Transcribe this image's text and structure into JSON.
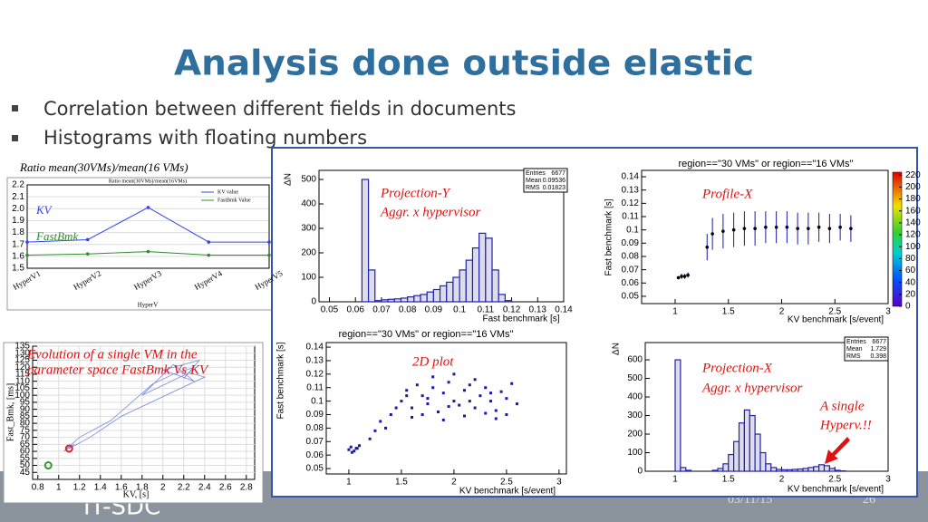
{
  "title": "Analysis done outside elastic",
  "bullets": [
    "Correlation between different fields in documents",
    "Histograms with floating numbers"
  ],
  "ratio_chart": {
    "type": "line",
    "caption": "Ratio mean(30VMs)/mean(16 VMs)",
    "title": "Ratio mean(30VMs)/mean(16VMs)",
    "categories": [
      "HyperV1",
      "HyperV2",
      "HyperV3",
      "HyperV4",
      "HyperV5"
    ],
    "series": [
      {
        "name": "KV value",
        "color": "#3344ee",
        "values": [
          1.72,
          1.74,
          2.01,
          1.72,
          1.72
        ]
      },
      {
        "name": "FastBmk Value",
        "color": "#2e8b2e",
        "values": [
          1.61,
          1.62,
          1.64,
          1.61,
          1.61
        ]
      }
    ],
    "annotations": [
      "KV",
      "FastBmk"
    ],
    "xlabel": "HyperV",
    "ylim": [
      1.5,
      2.2
    ],
    "yticks": [
      1.5,
      1.6,
      1.7,
      1.8,
      1.9,
      {
        "value": 2,
        "label": "2.0"
      },
      2.1,
      2.2
    ],
    "grid": true
  },
  "evolution_chart": {
    "type": "line",
    "annotation": [
      "Evolution of a single VM in the",
      "parameter space FastBmk Vs KV"
    ],
    "x": [
      1.1,
      1.15,
      1.05,
      1.2,
      1.5,
      1.9,
      2.1,
      2.3,
      2.2,
      2.35,
      2.0,
      2.3,
      2.1,
      1.8,
      2.25,
      2.4,
      1.6,
      1.3,
      1.1
    ],
    "values": [
      62,
      65,
      60,
      70,
      82,
      108,
      115,
      120,
      112,
      125,
      118,
      110,
      122,
      100,
      116,
      113,
      85,
      70,
      62
    ],
    "color": "#7788dd",
    "markers": [
      {
        "color": "#dd2222",
        "x": 1.1,
        "y": 62
      },
      {
        "color": "#339933",
        "x": 0.9,
        "y": 50
      }
    ],
    "xlabel": "KV, [s]",
    "ylabel": "Fast_Bmk, [ms]",
    "xlim": [
      0.75,
      2.88
    ],
    "ylim": [
      40,
      135
    ],
    "xticks": [
      0.8,
      1,
      1.2,
      1.4,
      1.6,
      1.8,
      2,
      2.2,
      2.4,
      2.6,
      2.8
    ],
    "yticks": [
      45,
      50,
      55,
      60,
      65,
      70,
      75,
      80,
      85,
      90,
      95,
      100,
      105,
      110,
      115,
      120,
      125,
      130,
      135
    ],
    "grid": true
  },
  "projection_y": {
    "type": "histogram",
    "annotation": [
      "Projection-Y",
      "Aggr. x hypervisor"
    ],
    "stats": {
      "labels": [
        "Entries",
        "Mean",
        "RMS"
      ],
      "values": [
        6677,
        0.09536,
        0.01823
      ]
    },
    "bins": [
      0.05,
      0.0525,
      0.055,
      0.0575,
      0.06,
      0.0625,
      0.065,
      0.0675,
      0.07,
      0.0725,
      0.075,
      0.0775,
      0.08,
      0.0825,
      0.085,
      0.0875,
      0.09,
      0.0925,
      0.095,
      0.0975,
      0.1,
      0.1025,
      0.105,
      0.1075,
      0.11,
      0.1125,
      0.115,
      0.1175,
      0.12,
      0.1225,
      0.125,
      0.1275,
      0.13,
      0.1325,
      0.135,
      0.1375,
      0.14
    ],
    "values": [
      0,
      0,
      0,
      0,
      0,
      500,
      130,
      5,
      8,
      10,
      12,
      15,
      20,
      25,
      30,
      40,
      50,
      65,
      80,
      100,
      130,
      170,
      220,
      280,
      260,
      130,
      30,
      5,
      0,
      0,
      0,
      0,
      0,
      0,
      0,
      0
    ],
    "color": "#2222aa",
    "xlabel": "Fast benchmark [s]",
    "ylabel": "ΔN",
    "xlim": [
      0.046,
      0.14
    ],
    "ylim": [
      0,
      537
    ],
    "xticks": [
      0.05,
      0.06,
      0.07,
      0.08,
      0.09,
      0.1,
      0.11,
      0.12,
      0.13,
      0.14
    ],
    "yticks": [
      0,
      100,
      200,
      300,
      400,
      500
    ]
  },
  "profile_x": {
    "type": "errorbar",
    "title": "region==\"30 VMs\" or region==\"16 VMs\"",
    "annotation": [
      "Profile-X"
    ],
    "x": [
      1.03,
      1.06,
      1.09,
      1.12,
      1.3,
      1.35,
      1.45,
      1.55,
      1.65,
      1.75,
      1.85,
      1.95,
      2.05,
      2.15,
      2.25,
      2.35,
      2.45,
      2.55,
      2.65
    ],
    "values": [
      0.064,
      0.065,
      0.065,
      0.066,
      0.087,
      0.097,
      0.099,
      0.1,
      0.101,
      0.101,
      0.102,
      0.102,
      0.102,
      0.101,
      0.101,
      0.102,
      0.101,
      0.102,
      0.101
    ],
    "errors": [
      0.001,
      0.002,
      0.002,
      0.002,
      0.01,
      0.012,
      0.013,
      0.013,
      0.013,
      0.013,
      0.012,
      0.012,
      0.012,
      0.012,
      0.012,
      0.011,
      0.011,
      0.01,
      0.01
    ],
    "color": "#1a1aaa",
    "xlabel": "KV benchmark [s/event]",
    "ylabel": "Fast benchmark [s]",
    "xlim": [
      0.685,
      3
    ],
    "ylim": [
      0.0445,
      0.1448
    ],
    "xticks": [
      1,
      1.5,
      2,
      2.5,
      3
    ],
    "yticks": [
      0.05,
      0.06,
      0.07,
      0.08,
      0.09,
      0.1,
      0.11,
      0.12,
      0.13,
      0.14
    ],
    "colorbar_lim": [
      0,
      225
    ],
    "colorbar_ticks": [
      0,
      20,
      40,
      60,
      80,
      100,
      120,
      140,
      160,
      180,
      200,
      220
    ]
  },
  "scatter_2d": {
    "type": "scatter",
    "title": "region==\"30 VMs\" or region==\"16 VMs\"",
    "annotation": [
      "2D plot"
    ],
    "x": [
      1.0,
      1.02,
      1.05,
      1.08,
      1.1,
      1.03,
      1.07,
      1.2,
      1.25,
      1.3,
      1.35,
      1.4,
      1.45,
      1.5,
      1.55,
      1.6,
      1.65,
      1.7,
      1.75,
      1.8,
      1.85,
      1.9,
      1.95,
      2.0,
      2.05,
      2.1,
      2.15,
      2.2,
      2.25,
      2.3,
      2.35,
      2.4,
      2.45,
      2.5,
      2.55,
      2.6,
      1.6,
      1.7,
      1.8,
      1.9,
      2.0,
      2.1,
      2.2,
      2.3,
      2.4,
      2.5,
      1.55,
      1.75,
      1.95,
      2.15,
      2.35
    ],
    "values": [
      0.064,
      0.066,
      0.063,
      0.065,
      0.067,
      0.062,
      0.065,
      0.072,
      0.078,
      0.085,
      0.08,
      0.09,
      0.095,
      0.1,
      0.108,
      0.095,
      0.112,
      0.104,
      0.098,
      0.11,
      0.092,
      0.106,
      0.114,
      0.1,
      0.097,
      0.108,
      0.112,
      0.095,
      0.104,
      0.11,
      0.1,
      0.093,
      0.107,
      0.102,
      0.113,
      0.098,
      0.088,
      0.09,
      0.118,
      0.086,
      0.12,
      0.089,
      0.116,
      0.091,
      0.087,
      0.09,
      0.104,
      0.102,
      0.096,
      0.1,
      0.106
    ],
    "color": "#1a1aaa",
    "xlabel": "KV benchmark [s/event]",
    "ylabel": "Fast benchmark [s]",
    "xlim": [
      0.785,
      3.07
    ],
    "ylim": [
      0.046,
      0.1434
    ],
    "xticks": [
      1,
      1.5,
      2,
      2.5,
      3
    ],
    "yticks": [
      0.05,
      0.06,
      0.07,
      0.08,
      0.09,
      0.1,
      0.11,
      0.12,
      0.13,
      0.14
    ]
  },
  "projection_x": {
    "type": "histogram",
    "annotation": [
      "Projection-X",
      "Aggr. x hypervisor",
      "A single",
      "Hyperv.!!"
    ],
    "stats": {
      "labels": [
        "Entries",
        "Mean",
        "RMS"
      ],
      "values": [
        6677,
        1.729,
        0.398
      ]
    },
    "bins": [
      1,
      1.05,
      1.1,
      1.15,
      1.2,
      1.25,
      1.3,
      1.35,
      1.4,
      1.45,
      1.5,
      1.55,
      1.6,
      1.65,
      1.7,
      1.75,
      1.8,
      1.85,
      1.9,
      1.95,
      2,
      2.05,
      2.1,
      2.15,
      2.2,
      2.25,
      2.3,
      2.35,
      2.4,
      2.45,
      2.5,
      2.55,
      2.6,
      2.65,
      2.7,
      2.75
    ],
    "values": [
      600,
      20,
      5,
      0,
      0,
      0,
      0,
      5,
      15,
      40,
      90,
      160,
      260,
      330,
      300,
      200,
      100,
      40,
      20,
      10,
      8,
      8,
      10,
      12,
      15,
      20,
      25,
      35,
      30,
      15,
      5,
      2,
      0,
      0,
      0
    ],
    "color": "#2222aa",
    "xlabel": "KV benchmark [s/event]",
    "ylabel": "ΔN",
    "xlim": [
      0.719,
      3
    ],
    "ylim": [
      0,
      693
    ],
    "xticks": [
      1,
      1.5,
      2,
      2.5,
      3
    ],
    "yticks": [
      0,
      100,
      200,
      300,
      400,
      500,
      600
    ]
  },
  "footer": {
    "logo": "IT-SDC",
    "date": "03/11/15",
    "page": "26"
  }
}
